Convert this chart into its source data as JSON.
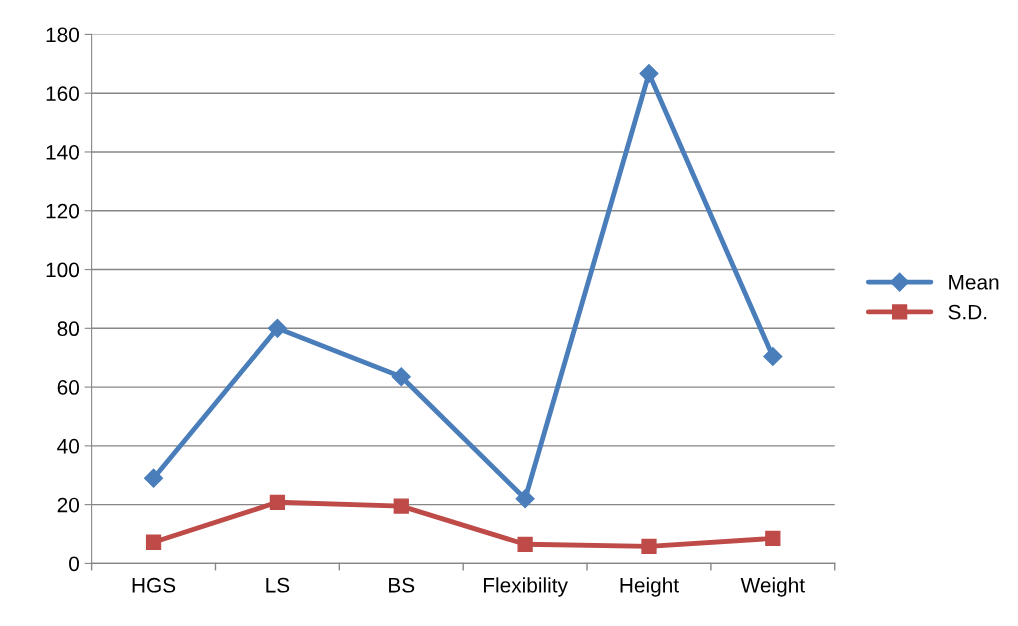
{
  "chart_data": {
    "type": "line",
    "categories": [
      "HGS",
      "LS",
      "BS",
      "Flexibility",
      "Height",
      "Weight"
    ],
    "series": [
      {
        "name": "Mean",
        "color": "#4a7ebb",
        "values": [
          29,
          80,
          63.5,
          22,
          166.7,
          70.4
        ],
        "marker": "diamond"
      },
      {
        "name": "S.D.",
        "color": "#be4b48",
        "values": [
          7.2,
          20.8,
          19.5,
          6.5,
          5.8,
          8.5
        ],
        "marker": "square"
      }
    ],
    "ylim": [
      0,
      180
    ],
    "yticks": [
      0,
      20,
      40,
      60,
      80,
      100,
      120,
      140,
      160,
      180
    ],
    "grid": "y",
    "legend": "right",
    "line_style": "solid"
  }
}
